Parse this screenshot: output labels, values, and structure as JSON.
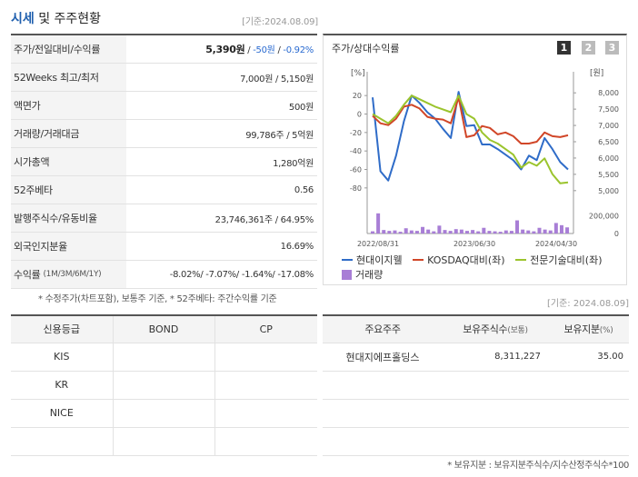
{
  "header": {
    "title_main": "시세",
    "title_sub": " 및 주주현황",
    "date": "[기준:2024.08.09]"
  },
  "stats": [
    {
      "label": "주가/전일대비/수익률",
      "price": "5,390원",
      "sep1": " / ",
      "change": "-50원",
      "sep2": " / ",
      "rate": "-0.92%"
    },
    {
      "label": "52Weeks 최고/최저",
      "value": "7,000원 / 5,150원"
    },
    {
      "label": "액면가",
      "value": "500원"
    },
    {
      "label": "거래량/거래대금",
      "value": "99,786주 / 5억원"
    },
    {
      "label": "시가총액",
      "value": "1,280억원"
    },
    {
      "label": "52주베타",
      "value": "0.56"
    },
    {
      "label": "발행주식수/유동비율",
      "value": "23,746,361주 / 64.95%"
    },
    {
      "label": "외국인지분율",
      "value": "16.69%"
    },
    {
      "label": "수익률",
      "sub": "(1M/3M/6M/1Y)",
      "value": "-8.02%/ -7.07%/ -1.64%/ -17.08%"
    }
  ],
  "note1": "* 수정주가(차트포함), 보통주 기준, * 52주베타: 주간수익률 기준",
  "chart_panel": {
    "title": "주가/상대수익률",
    "pages": [
      "1",
      "2",
      "3"
    ],
    "colors": {
      "stock": "#2f6cc8",
      "kosdaq": "#d14628",
      "sector": "#9bc42d",
      "volume": "#a87ed6",
      "page_active": "#333333",
      "page_inactive": "#bbbbbb"
    }
  },
  "chart_data": {
    "type": "line",
    "left_axis": {
      "unit": "[%]",
      "ticks": [
        "20",
        "0",
        "-20",
        "-40",
        "-60",
        "-80"
      ],
      "ylim": [
        -90,
        30
      ]
    },
    "right_axis": {
      "unit": "[원]",
      "ticks": [
        "8,000",
        "7,500",
        "7,000",
        "6,500",
        "6,000",
        "5,500",
        "5,000"
      ],
      "ylim": [
        4800,
        8200
      ]
    },
    "volume_axis": {
      "ticks": [
        "200,000",
        "0"
      ],
      "ylim": [
        0,
        280000
      ]
    },
    "x_ticks": [
      "2022/08/31",
      "2023/06/30",
      "2024/04/30"
    ],
    "series": [
      {
        "name": "현대이지웰",
        "axis": "left",
        "values": [
          18,
          -62,
          -72,
          -45,
          -8,
          20,
          12,
          2,
          -5,
          -16,
          -26,
          24,
          -13,
          -12,
          -33,
          -33,
          -38,
          -44,
          -50,
          -60,
          -45,
          -50,
          -26,
          -38,
          -52,
          -60
        ]
      },
      {
        "name": "KOSDAQ대비(좌)",
        "axis": "left",
        "values": [
          -2,
          -10,
          -12,
          -5,
          8,
          10,
          6,
          -3,
          -5,
          -6,
          -10,
          18,
          -25,
          -23,
          -13,
          -15,
          -22,
          -20,
          -24,
          -32,
          -32,
          -30,
          -20,
          -24,
          -25,
          -23
        ]
      },
      {
        "name": "전문기술대비(좌)",
        "axis": "left",
        "values": [
          0,
          -5,
          -10,
          -2,
          10,
          20,
          16,
          12,
          8,
          5,
          2,
          20,
          0,
          -5,
          -20,
          -28,
          -32,
          -38,
          -44,
          -58,
          -52,
          -56,
          -48,
          -65,
          -75,
          -74
        ]
      }
    ],
    "volume": {
      "name": "거래량",
      "values": [
        25000,
        230000,
        40000,
        30000,
        35000,
        20000,
        60000,
        35000,
        30000,
        75000,
        45000,
        25000,
        90000,
        40000,
        30000,
        50000,
        45000,
        30000,
        40000,
        25000,
        65000,
        30000,
        25000,
        20000,
        35000,
        30000,
        150000,
        45000,
        35000,
        25000,
        65000,
        45000,
        35000,
        120000,
        95000,
        70000
      ]
    }
  },
  "credit": {
    "headers": [
      "신용등급",
      "BOND",
      "CP"
    ],
    "rows": [
      [
        "KIS",
        "",
        ""
      ],
      [
        "KR",
        "",
        ""
      ],
      [
        "NICE",
        "",
        ""
      ],
      [
        "",
        "",
        ""
      ]
    ]
  },
  "holders_date": "[기준: 2024.08.09]",
  "holders": {
    "headers": [
      "주요주주",
      "보유주식수",
      "(보통)",
      "보유지분",
      "(%)"
    ],
    "rows": [
      [
        "현대지에프홀딩스",
        "8,311,227",
        "35.00"
      ],
      [
        "",
        "",
        ""
      ],
      [
        "",
        "",
        ""
      ],
      [
        "",
        "",
        ""
      ]
    ]
  },
  "note2": "* 보유지분 : 보유지분주식수/지수산정주식수*100"
}
